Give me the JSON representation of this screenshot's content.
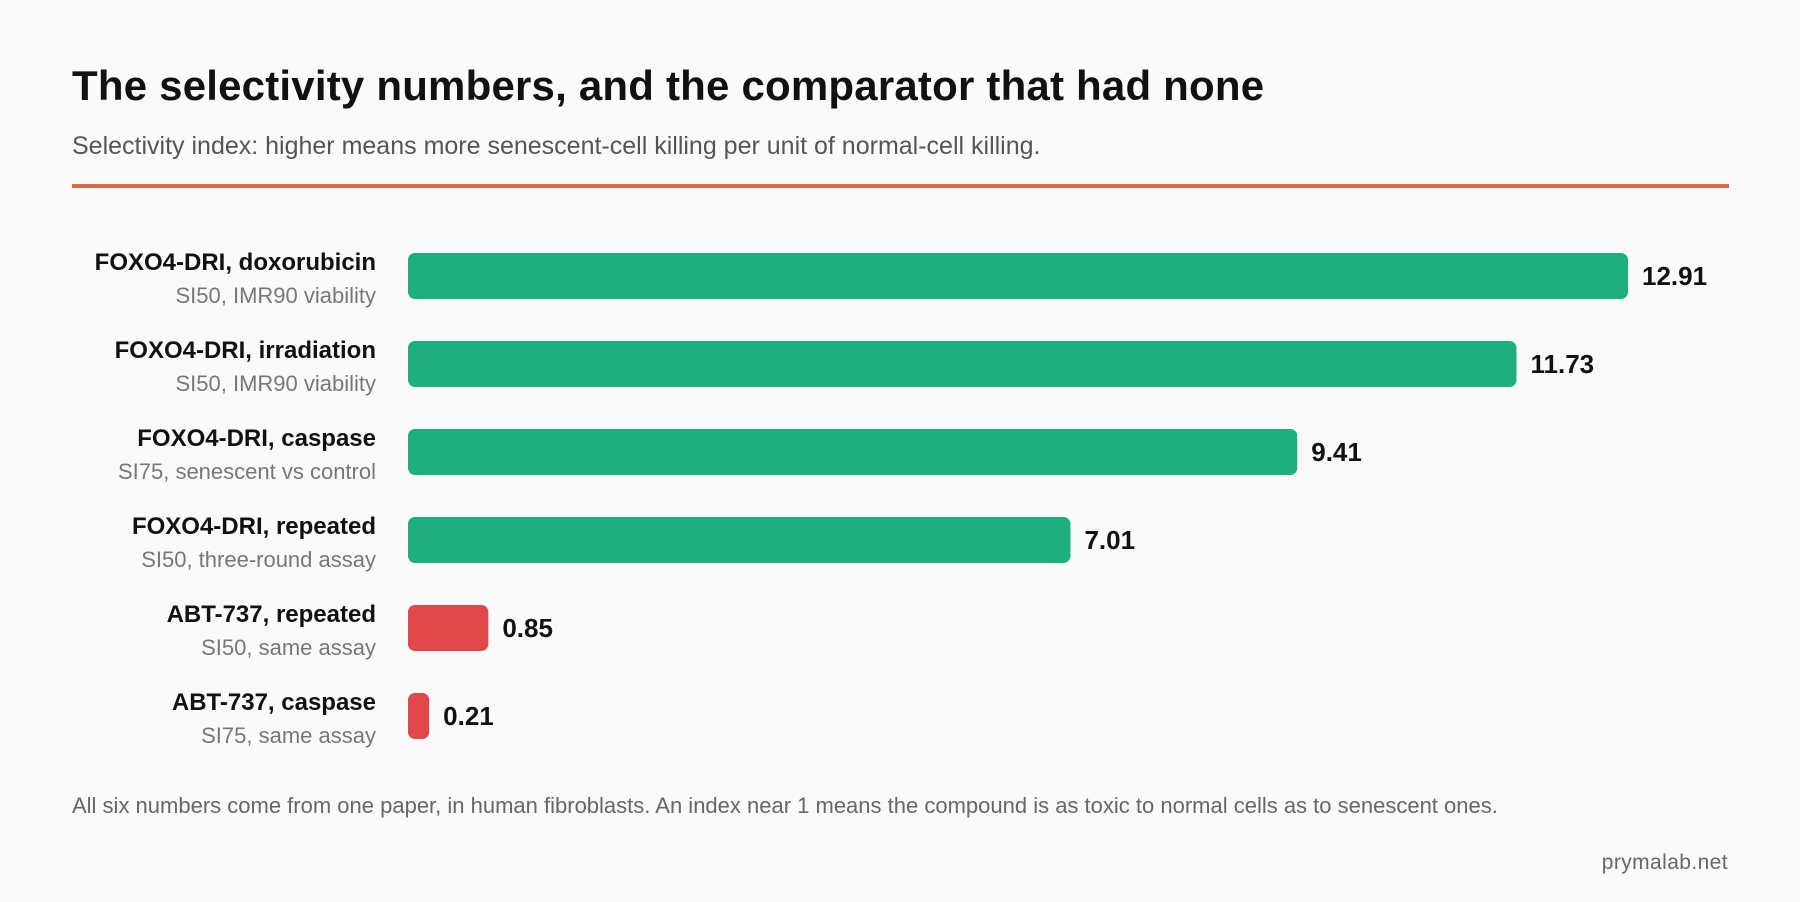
{
  "header": {
    "title": "The selectivity numbers, and the comparator that had none",
    "subtitle": "Selectivity index: higher means more senescent-cell killing per unit of normal-cell killing."
  },
  "chart_data": {
    "type": "bar",
    "orientation": "horizontal",
    "categories": [
      "FOXO4-DRI, doxorubicin",
      "FOXO4-DRI, irradiation",
      "FOXO4-DRI, caspase",
      "FOXO4-DRI, repeated",
      "ABT-737, repeated",
      "ABT-737, caspase"
    ],
    "sublabels": [
      "SI50, IMR90 viability",
      "SI50, IMR90 viability",
      "SI75, senescent vs control",
      "SI50, three-round assay",
      "SI50, same assay",
      "SI75, same assay"
    ],
    "values": [
      12.91,
      11.73,
      9.41,
      7.01,
      0.85,
      0.21
    ],
    "value_labels": [
      "12.91",
      "11.73",
      "9.41",
      "7.01",
      "0.85",
      "0.21"
    ],
    "bar_colors": [
      "#1db07c",
      "#1db07c",
      "#1db07c",
      "#1db07c",
      "#e0484a",
      "#e0484a"
    ],
    "xlim": [
      0,
      12.91
    ],
    "grid": false,
    "legend": "none"
  },
  "footnote": "All six numbers come from one paper, in human fibroblasts. An index near 1 means the compound is as toxic to normal cells as to senescent ones.",
  "credit": "prymalab.net",
  "colors": {
    "accent_rule": "#d9683e",
    "positive": "#1db07c",
    "negative": "#e0484a",
    "background": "#fafafa"
  }
}
